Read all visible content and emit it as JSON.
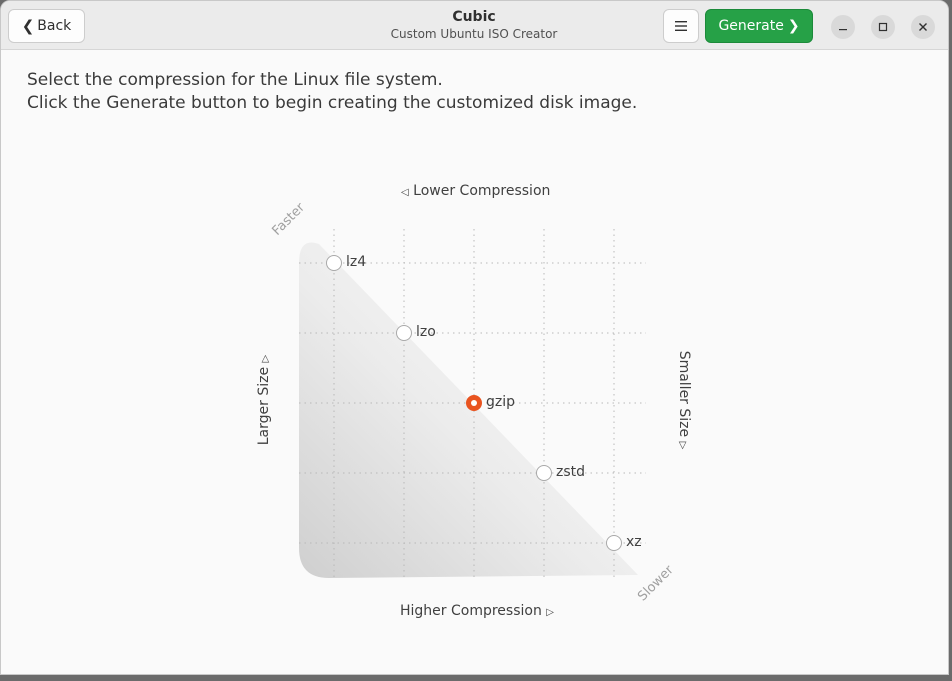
{
  "header": {
    "back_label": "Back",
    "title": "Cubic",
    "subtitle": "Custom Ubuntu ISO Creator",
    "menu_icon": "hamburger-menu-icon",
    "generate_label": "Generate",
    "minimize_icon": "minimize-icon",
    "maximize_icon": "maximize-icon",
    "close_icon": "close-icon"
  },
  "instructions": {
    "line1": "Select the compression for the Linux file system.",
    "line2": "Click the Generate button to begin creating the customized disk image."
  },
  "graph": {
    "top_label": "Lower Compression",
    "bottom_label": "Higher Compression",
    "left_label": "Larger Size",
    "right_label": "Smaller Size",
    "corner_top": "Faster",
    "corner_bottom": "Slower",
    "options": [
      {
        "label": "lz4",
        "selected": false
      },
      {
        "label": "lzo",
        "selected": false
      },
      {
        "label": "gzip",
        "selected": true
      },
      {
        "label": "zstd",
        "selected": false
      },
      {
        "label": "xz",
        "selected": false
      }
    ]
  },
  "colors": {
    "accent": "#e95420",
    "generate": "#26a147"
  }
}
